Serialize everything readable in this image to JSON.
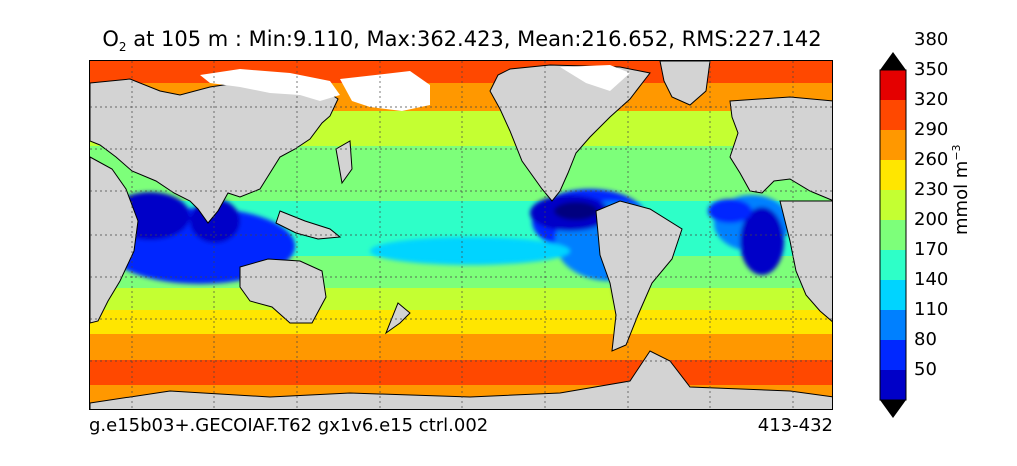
{
  "title": {
    "species": "O",
    "species_sub": "2",
    "rest": " at 105 m : Min:9.110, Max:362.423, Mean:216.652, RMS:227.142"
  },
  "footer": {
    "run_name": "g.e15b03+.GECOIAF.T62 gx1v6.e15 ctrl.002",
    "years": "413-432"
  },
  "colorbar": {
    "unit_main": "mmol m",
    "unit_exp": "−3",
    "levels": [
      20,
      50,
      80,
      110,
      140,
      170,
      200,
      230,
      260,
      290,
      320,
      350,
      380,
      410
    ],
    "tick_labels": [
      "50",
      "80",
      "110",
      "140",
      "170",
      "200",
      "230",
      "260",
      "290",
      "320",
      "350",
      "380"
    ],
    "colors": [
      "#00007f",
      "#0000c8",
      "#0028ff",
      "#0080ff",
      "#00d4ff",
      "#2effc8",
      "#7dff7a",
      "#c4ff32",
      "#ffe600",
      "#ff9800",
      "#ff4800",
      "#e40000",
      "#7f0000"
    ],
    "extend": "both"
  },
  "map": {
    "land_color": "#d3d3d3",
    "ice_color": "#ffffff",
    "grid": "dotted",
    "projection": "cylindrical",
    "lon_range": [
      20,
      380
    ],
    "lat_range": [
      -80,
      90
    ]
  }
}
